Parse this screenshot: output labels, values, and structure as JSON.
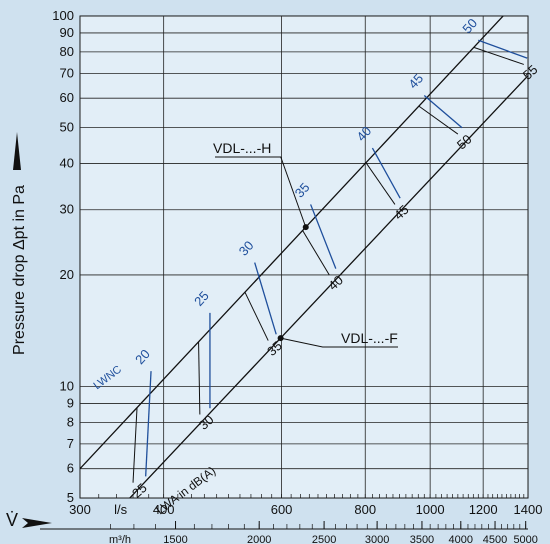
{
  "chart_data": {
    "type": "line",
    "title": "",
    "ylabel": "Pressure drop Δpt in Pa",
    "xlabel": "V̇",
    "y_scale": "log",
    "x_scale": "log",
    "ylim": [
      5,
      100
    ],
    "xlim_ls": [
      300,
      1400
    ],
    "y_ticks": [
      5,
      6,
      7,
      8,
      9,
      10,
      20,
      30,
      40,
      50,
      60,
      70,
      80,
      90,
      100
    ],
    "x_ticks_ls": [
      300,
      400,
      600,
      800,
      1000,
      1200,
      1400
    ],
    "x_unit_ls": "l/s",
    "x_ticks_m3h": [
      1500,
      2000,
      2500,
      3000,
      3500,
      4000,
      4500,
      5000
    ],
    "x_unit_m3h": "m³/h",
    "series": [
      {
        "name": "VDL-...-H",
        "points": [
          [
            300,
            6.0
          ],
          [
            1400,
            118
          ]
        ]
      },
      {
        "name": "VDL-...-F",
        "points": [
          [
            300,
            3.6
          ],
          [
            1400,
            69
          ]
        ]
      }
    ],
    "lwa_label": "LWA in dB(A)",
    "lwnc_label": "LWNC",
    "lwa_marks": [
      {
        "label": "25",
        "ls": 360,
        "dp": 5.5
      },
      {
        "label": "30",
        "ls": 453,
        "dp": 8.4
      },
      {
        "label": "35",
        "ls": 573,
        "dp": 13.3
      },
      {
        "label": "40",
        "ls": 707,
        "dp": 20.0
      },
      {
        "label": "45",
        "ls": 886,
        "dp": 31.0
      },
      {
        "label": "50",
        "ls": 1100,
        "dp": 48.0
      },
      {
        "label": "55",
        "ls": 1380,
        "dp": 74.0
      }
    ],
    "lwnc_marks": [
      {
        "label": "20",
        "ls": 383,
        "dp": 11.0
      },
      {
        "label": "25",
        "ls": 469,
        "dp": 15.8
      },
      {
        "label": "30",
        "ls": 547,
        "dp": 21.6
      },
      {
        "label": "35",
        "ls": 663,
        "dp": 31.0
      },
      {
        "label": "40",
        "ls": 820,
        "dp": 44.0
      },
      {
        "label": "45",
        "ls": 980,
        "dp": 61.0
      },
      {
        "label": "50",
        "ls": 1180,
        "dp": 86.0
      }
    ],
    "callouts": {
      "h": "VDL-...-H",
      "f": "VDL-...-F"
    },
    "colors": {
      "background": "#cfe1ef",
      "plot": "#e2eef7",
      "blue": "#1f4f9c",
      "grid": "#222222"
    }
  }
}
